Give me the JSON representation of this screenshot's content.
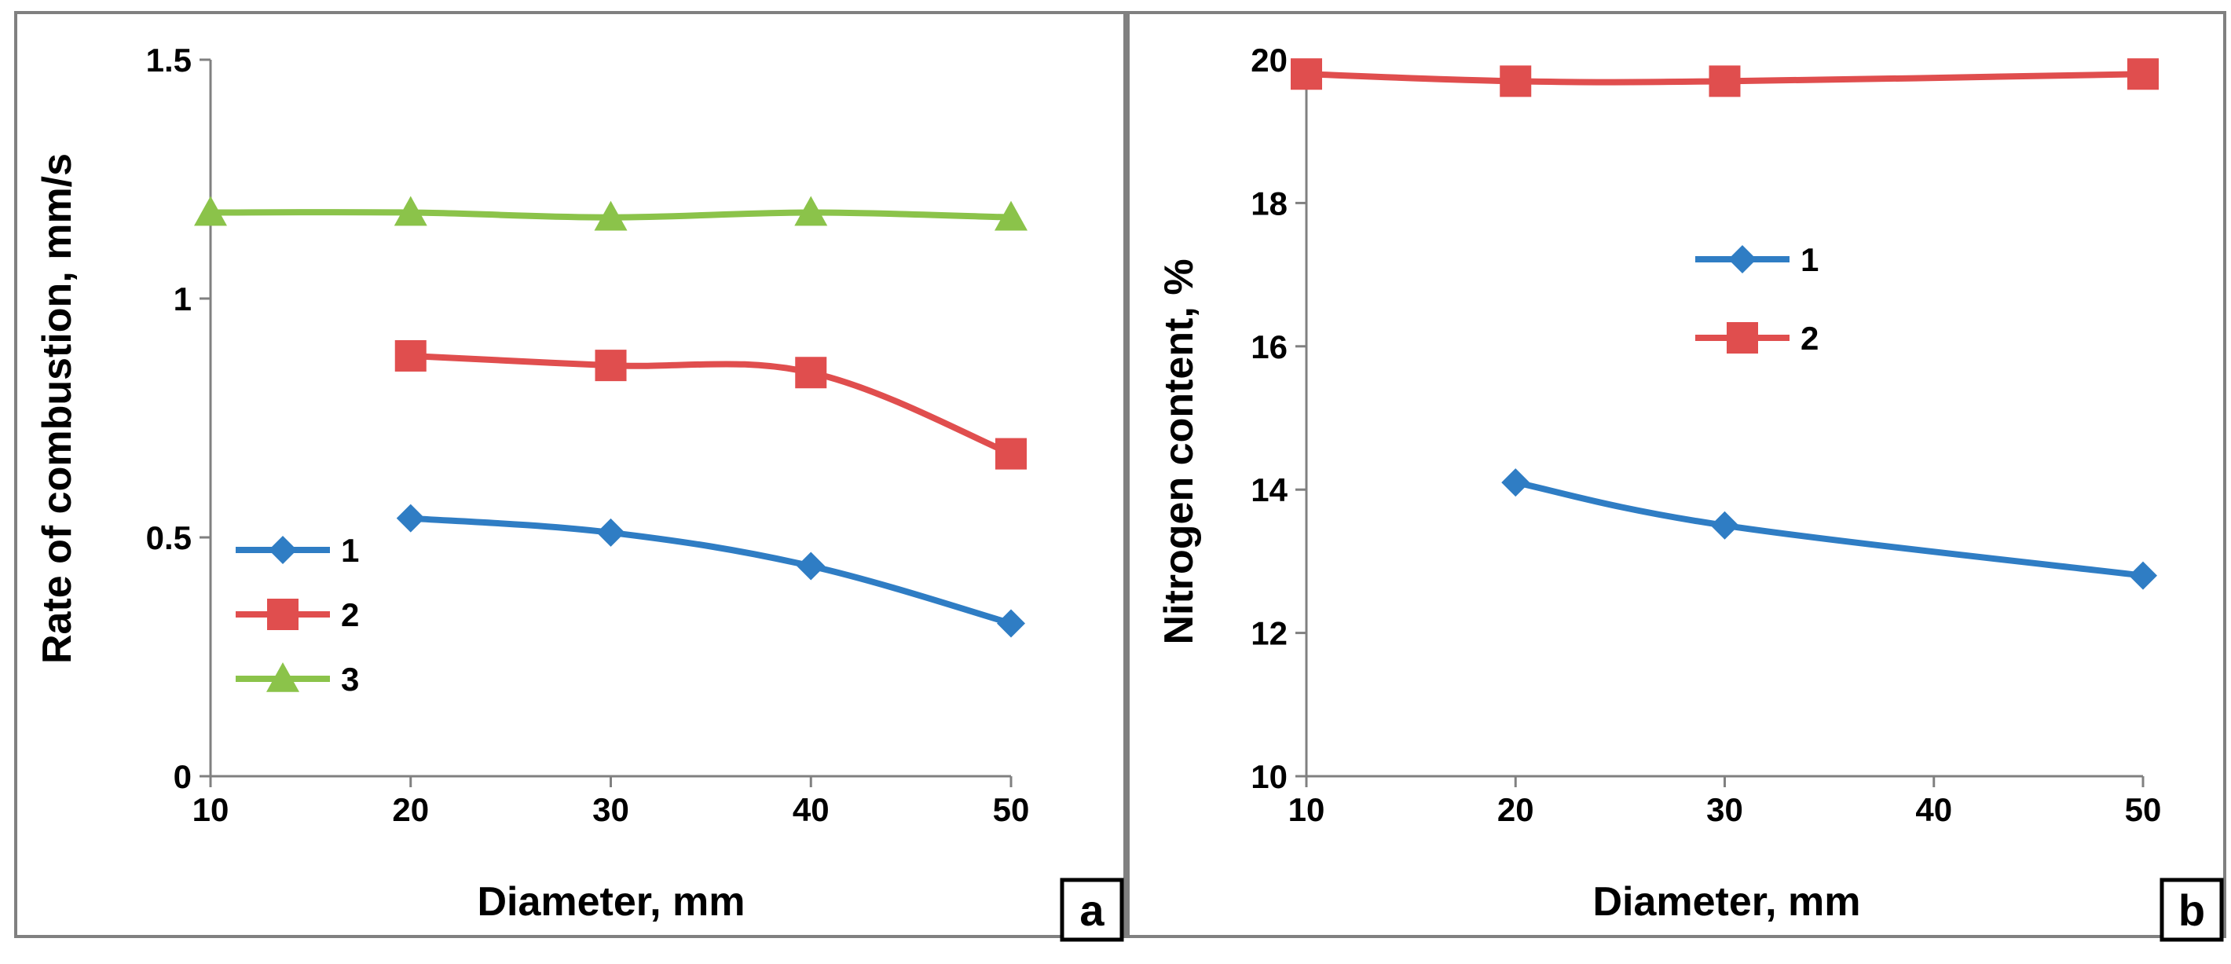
{
  "colors": {
    "series1": "#2f7dc4",
    "series2": "#e04e4e",
    "series3": "#8bc34a",
    "frame": "#808080"
  },
  "chart_data": [
    {
      "type": "line",
      "panel_label": "a",
      "xlabel": "Diameter, mm",
      "ylabel": "Rate of combustion, mm/s",
      "xlim": [
        10,
        50
      ],
      "ylim": [
        0,
        1.5
      ],
      "x_ticks": [
        "10",
        "20",
        "30",
        "40",
        "50"
      ],
      "y_ticks": [
        "0",
        "0.5",
        "1",
        "1.5"
      ],
      "legend_position": "left",
      "series": [
        {
          "name": "1",
          "marker": "diamond",
          "x": [
            20,
            30,
            40,
            50
          ],
          "y": [
            0.54,
            0.51,
            0.44,
            0.32
          ]
        },
        {
          "name": "2",
          "marker": "square",
          "x": [
            20,
            30,
            40,
            50
          ],
          "y": [
            0.88,
            0.86,
            0.845,
            0.675
          ]
        },
        {
          "name": "3",
          "marker": "triangle",
          "x": [
            10,
            20,
            30,
            40,
            50
          ],
          "y": [
            1.18,
            1.18,
            1.17,
            1.18,
            1.17
          ]
        }
      ]
    },
    {
      "type": "line",
      "panel_label": "b",
      "xlabel": "Diameter, mm",
      "ylabel": "Nitrogen content, %",
      "xlim": [
        10,
        50
      ],
      "ylim": [
        10,
        20
      ],
      "x_ticks": [
        "10",
        "20",
        "30",
        "40",
        "50"
      ],
      "y_ticks": [
        "10",
        "12",
        "14",
        "16",
        "18",
        "20"
      ],
      "legend_position": "top-center",
      "series": [
        {
          "name": "1",
          "marker": "diamond",
          "x": [
            20,
            30,
            50
          ],
          "y": [
            14.1,
            13.5,
            12.8
          ]
        },
        {
          "name": "2",
          "marker": "square",
          "x": [
            10,
            20,
            30,
            50
          ],
          "y": [
            19.8,
            19.7,
            19.7,
            19.8
          ]
        }
      ]
    }
  ]
}
